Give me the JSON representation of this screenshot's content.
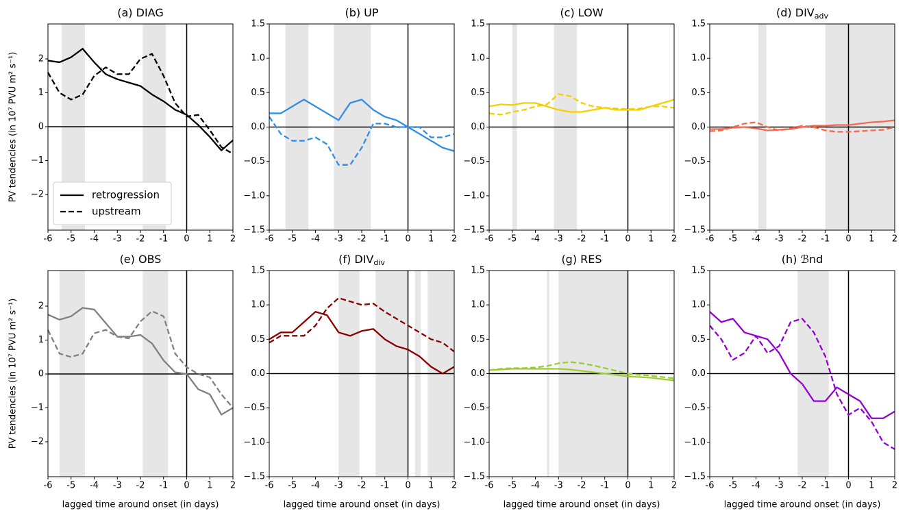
{
  "chart_data": [
    {
      "type": "line",
      "title": "(a) DIAG",
      "y_label": "PV tendencies (in 10⁷ PVU m² s⁻¹)",
      "x": [
        -6,
        -5.5,
        -5,
        -4.5,
        -4,
        -3.5,
        -3,
        -2.5,
        -2,
        -1.5,
        -1,
        -0.5,
        0,
        0.5,
        1,
        1.5,
        2
      ],
      "series": [
        {
          "name": "retrogression",
          "style": "solid",
          "color": "#000000",
          "values": [
            1.95,
            1.9,
            2.05,
            2.3,
            1.9,
            1.55,
            1.4,
            1.3,
            1.2,
            0.95,
            0.75,
            0.5,
            0.35,
            0.05,
            -0.3,
            -0.7,
            -0.4
          ]
        },
        {
          "name": "upstream",
          "style": "dashed",
          "color": "#000000",
          "values": [
            1.6,
            1.0,
            0.8,
            0.95,
            1.5,
            1.75,
            1.55,
            1.55,
            2.0,
            2.15,
            1.5,
            0.7,
            0.3,
            0.35,
            -0.1,
            -0.6,
            -0.8
          ]
        }
      ],
      "shaded": [
        [
          -5.4,
          -4.4
        ],
        [
          -1.9,
          -0.9
        ]
      ],
      "legend": "lower left",
      "xlim": [
        -6,
        2
      ],
      "xticks": [
        -6,
        -5,
        -4,
        -3,
        -2,
        -1,
        0,
        1,
        2
      ],
      "ylim": [
        -3.05,
        3.03
      ],
      "yticks": [
        {
          "value": -2,
          "label": "−2"
        },
        {
          "value": -1,
          "label": "−1"
        },
        0,
        1,
        2
      ]
    },
    {
      "type": "line",
      "title": "(b) UP",
      "x": [
        -6,
        -5.5,
        -5,
        -4.5,
        -4,
        -3.5,
        -3,
        -2.5,
        -2,
        -1.5,
        -1,
        -0.5,
        0,
        0.5,
        1,
        1.5,
        2
      ],
      "series": [
        {
          "style": "solid",
          "color": "#2f8ee8",
          "values": [
            0.2,
            0.2,
            0.3,
            0.4,
            0.3,
            0.2,
            0.1,
            0.35,
            0.4,
            0.25,
            0.15,
            0.1,
            0.0,
            -0.1,
            -0.2,
            -0.3,
            -0.35
          ]
        },
        {
          "style": "dashed",
          "color": "#2f8ee8",
          "values": [
            0.15,
            -0.1,
            -0.2,
            -0.2,
            -0.15,
            -0.25,
            -0.55,
            -0.55,
            -0.3,
            0.05,
            0.05,
            0.0,
            0.0,
            0.0,
            -0.15,
            -0.15,
            -0.1
          ]
        }
      ],
      "shaded": [
        [
          -5.3,
          -4.3
        ],
        [
          -3.2,
          -1.6
        ]
      ],
      "xlim": [
        -6,
        2
      ],
      "xticks": [
        -6,
        -5,
        -4,
        -3,
        -2,
        -1,
        0,
        1,
        2
      ],
      "ylim": [
        -1.5,
        1.5
      ],
      "yticks": [
        {
          "value": -1.5,
          "label": "−1.5"
        },
        {
          "value": -1,
          "label": "−1.0"
        },
        {
          "value": -0.5,
          "label": "−0.5"
        },
        {
          "value": 0,
          "label": "0.0"
        },
        0.5,
        {
          "value": 1,
          "label": "1.0"
        },
        1.5
      ]
    },
    {
      "type": "line",
      "title": "(c) LOW",
      "x": [
        -6,
        -5.5,
        -5,
        -4.5,
        -4,
        -3.5,
        -3,
        -2.5,
        -2,
        -1.5,
        -1,
        -0.5,
        0,
        0.5,
        1,
        1.5,
        2
      ],
      "series": [
        {
          "style": "solid",
          "color": "#f5d000",
          "values": [
            0.3,
            0.33,
            0.32,
            0.35,
            0.35,
            0.3,
            0.25,
            0.22,
            0.22,
            0.25,
            0.28,
            0.25,
            0.25,
            0.25,
            0.3,
            0.35,
            0.4
          ]
        },
        {
          "style": "dashed",
          "color": "#f5d000",
          "values": [
            0.2,
            0.18,
            0.22,
            0.25,
            0.3,
            0.33,
            0.48,
            0.45,
            0.35,
            0.3,
            0.28,
            0.27,
            0.26,
            0.27,
            0.3,
            0.3,
            0.28
          ]
        }
      ],
      "shaded": [
        [
          -5.0,
          -4.8
        ],
        [
          -3.2,
          -2.2
        ]
      ],
      "xlim": [
        -6,
        2
      ],
      "xticks": [
        -6,
        -5,
        -4,
        -3,
        -2,
        -1,
        0,
        1,
        2
      ],
      "ylim": [
        -1.5,
        1.5
      ],
      "yticks": [
        {
          "value": -1.5,
          "label": "−1.5"
        },
        {
          "value": -1,
          "label": "−1.0"
        },
        {
          "value": -0.5,
          "label": "−0.5"
        },
        {
          "value": 0,
          "label": "0.0"
        },
        0.5,
        {
          "value": 1,
          "label": "1.0"
        },
        1.5
      ]
    },
    {
      "type": "line",
      "title": "(d) DIV",
      "title_subscript": "adv",
      "x": [
        -6,
        -5.5,
        -5,
        -4.5,
        -4,
        -3.5,
        -3,
        -2.5,
        -2,
        -1.5,
        -1,
        -0.5,
        0,
        0.5,
        1,
        1.5,
        2
      ],
      "series": [
        {
          "style": "solid",
          "color": "#f4694f",
          "values": [
            -0.03,
            -0.03,
            -0.01,
            0,
            -0.02,
            -0.05,
            -0.04,
            -0.03,
            0.0,
            0.02,
            0.02,
            0.03,
            0.03,
            0.05,
            0.07,
            0.08,
            0.1
          ]
        },
        {
          "style": "dashed",
          "color": "#f4694f",
          "values": [
            -0.06,
            -0.05,
            0.0,
            0.05,
            0.07,
            0.0,
            -0.05,
            -0.02,
            0.02,
            0.0,
            -0.05,
            -0.07,
            -0.07,
            -0.06,
            -0.05,
            -0.04,
            0.0
          ]
        }
      ],
      "shaded": [
        [
          -3.9,
          -3.55
        ],
        [
          -1.0,
          2.0
        ]
      ],
      "xlim": [
        -6,
        2
      ],
      "xticks": [
        -6,
        -5,
        -4,
        -3,
        -2,
        -1,
        0,
        1,
        2
      ],
      "ylim": [
        -1.5,
        1.5
      ],
      "yticks": [
        {
          "value": -1.5,
          "label": "−1.5"
        },
        {
          "value": -1,
          "label": "−1.0"
        },
        {
          "value": -0.5,
          "label": "−0.5"
        },
        {
          "value": 0,
          "label": "0.0"
        },
        0.5,
        {
          "value": 1,
          "label": "1.0"
        },
        1.5
      ]
    },
    {
      "type": "line",
      "title": "(e) OBS",
      "y_label": "PV tendencies (in 10⁷ PVU m² s⁻¹)",
      "x_label": "lagged time around onset (in days)",
      "x": [
        -6,
        -5.5,
        -5,
        -4.5,
        -4,
        -3.5,
        -3,
        -2.5,
        -2,
        -1.5,
        -1,
        -0.5,
        0,
        0.5,
        1,
        1.5,
        2
      ],
      "series": [
        {
          "style": "solid",
          "color": "#808080",
          "values": [
            1.75,
            1.6,
            1.7,
            1.95,
            1.9,
            1.5,
            1.1,
            1.1,
            1.15,
            0.9,
            0.4,
            0.05,
            0.0,
            -0.45,
            -0.6,
            -1.2,
            -1.0
          ]
        },
        {
          "style": "dashed",
          "color": "#808080",
          "values": [
            1.3,
            0.6,
            0.5,
            0.6,
            1.2,
            1.3,
            1.1,
            1.05,
            1.55,
            1.85,
            1.7,
            0.6,
            0.2,
            0.0,
            -0.1,
            -0.6,
            -1.0
          ]
        }
      ],
      "shaded": [
        [
          -5.5,
          -4.4
        ],
        [
          -1.9,
          -0.8
        ]
      ],
      "xlim": [
        -6,
        2
      ],
      "xticks": [
        -6,
        -5,
        -4,
        -3,
        -2,
        -1,
        0,
        1,
        2
      ],
      "ylim": [
        -3.03,
        3.05
      ],
      "yticks": [
        {
          "value": -2,
          "label": "−2"
        },
        {
          "value": -1,
          "label": "−1"
        },
        0,
        1,
        2
      ]
    },
    {
      "type": "line",
      "title": "(f) DIV",
      "title_subscript": "div",
      "x_label": "lagged time around onset (in days)",
      "x": [
        -6,
        -5.5,
        -5,
        -4.5,
        -4,
        -3.5,
        -3,
        -2.5,
        -2,
        -1.5,
        -1,
        -0.5,
        0,
        0.5,
        1,
        1.5,
        2
      ],
      "series": [
        {
          "style": "solid",
          "color": "#8b0000",
          "values": [
            0.5,
            0.6,
            0.6,
            0.75,
            0.9,
            0.85,
            0.6,
            0.55,
            0.62,
            0.65,
            0.5,
            0.4,
            0.35,
            0.25,
            0.1,
            0.0,
            0.1
          ]
        },
        {
          "style": "dashed",
          "color": "#8b0000",
          "values": [
            0.45,
            0.55,
            0.55,
            0.55,
            0.7,
            0.95,
            1.1,
            1.05,
            1.0,
            1.02,
            0.9,
            0.8,
            0.7,
            0.6,
            0.5,
            0.45,
            0.32
          ]
        }
      ],
      "shaded": [
        [
          -3.0,
          -2.1
        ],
        [
          -1.4,
          0.0
        ],
        [
          0.3,
          0.55
        ],
        [
          0.85,
          2.0
        ]
      ],
      "xlim": [
        -6,
        2
      ],
      "xticks": [
        -6,
        -5,
        -4,
        -3,
        -2,
        -1,
        0,
        1,
        2
      ],
      "ylim": [
        -1.5,
        1.5
      ],
      "yticks": [
        {
          "value": -1.5,
          "label": "−1.5"
        },
        {
          "value": -1,
          "label": "−1.0"
        },
        {
          "value": -0.5,
          "label": "−0.5"
        },
        {
          "value": 0,
          "label": "0.0"
        },
        0.5,
        {
          "value": 1,
          "label": "1.0"
        },
        1.5
      ]
    },
    {
      "type": "line",
      "title": "(g) RES",
      "x_label": "lagged time around onset (in days)",
      "x": [
        -6,
        -5.5,
        -5,
        -4.5,
        -4,
        -3.5,
        -3,
        -2.5,
        -2,
        -1.5,
        -1,
        -0.5,
        0,
        0.5,
        1,
        1.5,
        2
      ],
      "series": [
        {
          "style": "solid",
          "color": "#9acd32",
          "values": [
            0.05,
            0.06,
            0.07,
            0.07,
            0.07,
            0.07,
            0.07,
            0.06,
            0.04,
            0.02,
            0.0,
            -0.02,
            -0.04,
            -0.05,
            -0.06,
            -0.08,
            -0.1
          ]
        },
        {
          "style": "dashed",
          "color": "#9acd32",
          "values": [
            0.05,
            0.07,
            0.08,
            0.08,
            0.09,
            0.11,
            0.15,
            0.17,
            0.15,
            0.12,
            0.08,
            0.04,
            0.0,
            -0.02,
            -0.03,
            -0.05,
            -0.07
          ]
        }
      ],
      "shaded": [
        [
          -3.5,
          -3.4
        ],
        [
          -3.0,
          0.0
        ]
      ],
      "xlim": [
        -6,
        2
      ],
      "xticks": [
        -6,
        -5,
        -4,
        -3,
        -2,
        -1,
        0,
        1,
        2
      ],
      "ylim": [
        -1.5,
        1.5
      ],
      "yticks": [
        {
          "value": -1.5,
          "label": "−1.5"
        },
        {
          "value": -1,
          "label": "−1.0"
        },
        {
          "value": -0.5,
          "label": "−0.5"
        },
        {
          "value": 0,
          "label": "0.0"
        },
        0.5,
        {
          "value": 1,
          "label": "1.0"
        },
        1.5
      ]
    },
    {
      "type": "line",
      "title": "(h) ℬnd",
      "x_label": "lagged time around onset (in days)",
      "x": [
        -6,
        -5.5,
        -5,
        -4.5,
        -4,
        -3.5,
        -3,
        -2.5,
        -2,
        -1.5,
        -1,
        -0.5,
        0,
        0.5,
        1,
        1.5,
        2
      ],
      "series": [
        {
          "style": "solid",
          "color": "#9400d3",
          "values": [
            0.9,
            0.75,
            0.8,
            0.6,
            0.55,
            0.5,
            0.3,
            0.0,
            -0.15,
            -0.4,
            -0.4,
            -0.2,
            -0.3,
            -0.4,
            -0.65,
            -0.65,
            -0.55
          ]
        },
        {
          "style": "dashed",
          "color": "#9400d3",
          "values": [
            0.7,
            0.5,
            0.2,
            0.3,
            0.55,
            0.3,
            0.4,
            0.75,
            0.8,
            0.6,
            0.25,
            -0.3,
            -0.6,
            -0.5,
            -0.7,
            -1.0,
            -1.1
          ]
        }
      ],
      "shaded": [
        [
          -2.2,
          -0.85
        ]
      ],
      "xlim": [
        -6,
        2
      ],
      "xticks": [
        -6,
        -5,
        -4,
        -3,
        -2,
        -1,
        0,
        1,
        2
      ],
      "ylim": [
        -1.5,
        1.5
      ],
      "yticks": [
        {
          "value": -1.5,
          "label": "−1.5"
        },
        {
          "value": -1,
          "label": "−1.0"
        },
        {
          "value": -0.5,
          "label": "−0.5"
        },
        {
          "value": 0,
          "label": "0.0"
        },
        0.5,
        {
          "value": 1,
          "label": "1.0"
        },
        1.5
      ]
    }
  ]
}
